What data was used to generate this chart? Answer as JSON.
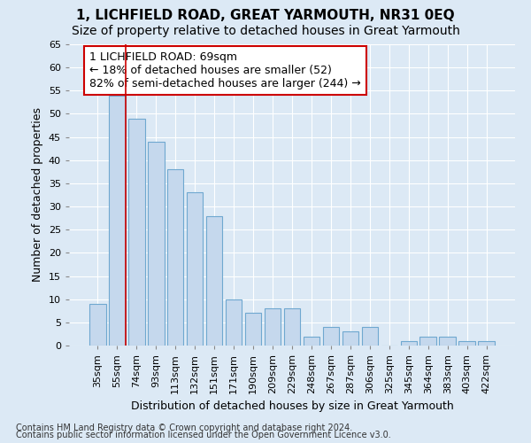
{
  "title": "1, LICHFIELD ROAD, GREAT YARMOUTH, NR31 0EQ",
  "subtitle": "Size of property relative to detached houses in Great Yarmouth",
  "xlabel": "Distribution of detached houses by size in Great Yarmouth",
  "ylabel": "Number of detached properties",
  "categories": [
    "35sqm",
    "55sqm",
    "74sqm",
    "93sqm",
    "113sqm",
    "132sqm",
    "151sqm",
    "171sqm",
    "190sqm",
    "209sqm",
    "229sqm",
    "248sqm",
    "267sqm",
    "287sqm",
    "306sqm",
    "325sqm",
    "345sqm",
    "364sqm",
    "383sqm",
    "403sqm",
    "422sqm"
  ],
  "values": [
    9,
    54,
    49,
    44,
    38,
    33,
    28,
    10,
    7,
    8,
    8,
    2,
    4,
    3,
    4,
    0,
    1,
    2,
    2,
    1,
    1
  ],
  "bar_color": "#c5d8ed",
  "bar_edge_color": "#6fa8d0",
  "highlight_index": 1,
  "highlight_line_color": "#cc0000",
  "ylim": [
    0,
    65
  ],
  "yticks": [
    0,
    5,
    10,
    15,
    20,
    25,
    30,
    35,
    40,
    45,
    50,
    55,
    60,
    65
  ],
  "annotation_text": "1 LICHFIELD ROAD: 69sqm\n← 18% of detached houses are smaller (52)\n82% of semi-detached houses are larger (244) →",
  "annotation_box_color": "#ffffff",
  "annotation_box_edgecolor": "#cc0000",
  "footer_line1": "Contains HM Land Registry data © Crown copyright and database right 2024.",
  "footer_line2": "Contains public sector information licensed under the Open Government Licence v3.0.",
  "background_color": "#dce9f5",
  "plot_bg_color": "#dce9f5",
  "grid_color": "#ffffff",
  "title_fontsize": 11,
  "subtitle_fontsize": 10,
  "label_fontsize": 9,
  "tick_fontsize": 8,
  "annotation_fontsize": 9,
  "footer_fontsize": 7
}
